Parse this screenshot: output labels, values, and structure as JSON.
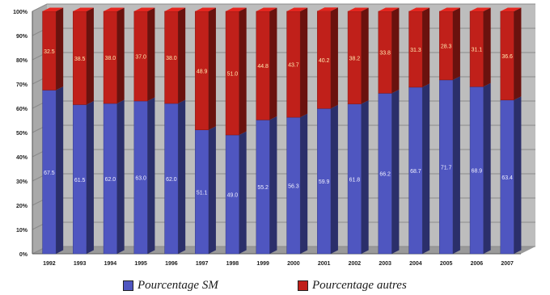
{
  "chart_data": {
    "type": "bar",
    "stacked": true,
    "three_d": true,
    "categories": [
      "1992",
      "1993",
      "1994",
      "1995",
      "1996",
      "1997",
      "1998",
      "1999",
      "2000",
      "2001",
      "2002",
      "2003",
      "2004",
      "2005",
      "2006",
      "2007"
    ],
    "yticks": [
      "0%",
      "10%",
      "20%",
      "30%",
      "40%",
      "50%",
      "60%",
      "70%",
      "80%",
      "90%",
      "100%"
    ],
    "ylim": [
      0,
      100
    ],
    "grid": true,
    "legend_placement": "bottom",
    "series": [
      {
        "name": "Pourcentage SM",
        "color": "#4f56c0",
        "values": [
          67.5,
          61.5,
          62.0,
          63.0,
          62.0,
          51.1,
          49.0,
          55.2,
          56.3,
          59.9,
          61.8,
          66.2,
          68.7,
          71.7,
          68.9,
          63.4
        ],
        "labels": [
          "67.5",
          "61.5",
          "62.0",
          "63.0",
          "62.0",
          "51.1",
          "49.0",
          "55.2",
          "56.3",
          "59.9",
          "61.8",
          "66.2",
          "68.7",
          "71.7",
          "68.9",
          "63.4"
        ]
      },
      {
        "name": "Pourcentage autres",
        "color": "#c0201a",
        "values": [
          32.5,
          38.5,
          38.0,
          37.0,
          38.0,
          48.9,
          51.0,
          44.8,
          43.7,
          40.2,
          38.2,
          33.8,
          31.3,
          28.3,
          31.1,
          36.6
        ],
        "labels": [
          "32.5",
          "38.5",
          "38.0",
          "37.0",
          "38.0",
          "48.9",
          "51.0",
          "44.8",
          "43.7",
          "40.2",
          "38.2",
          "33.8",
          "31.3",
          "28.3",
          "31.1",
          "36.6"
        ]
      }
    ]
  },
  "colors": {
    "wall": "#bdbdbd",
    "floor": "#9a9a9a",
    "grid": "#8a8a8a"
  }
}
